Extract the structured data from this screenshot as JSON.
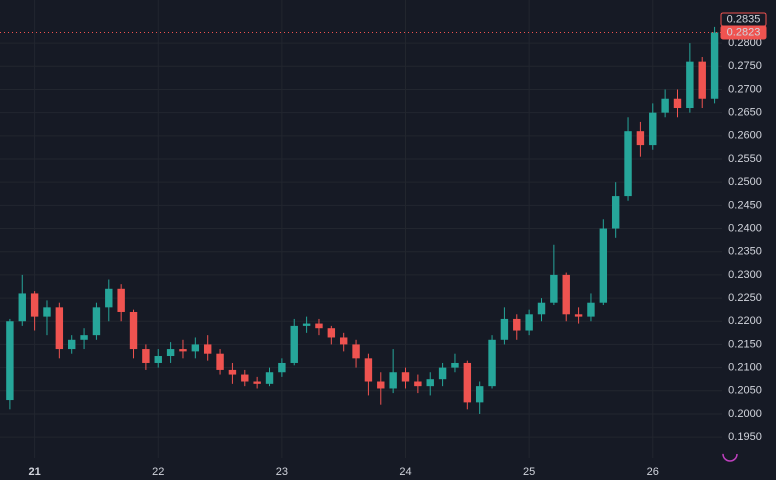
{
  "chart_data": {
    "type": "candlestick",
    "x": [
      20.8,
      20.9,
      21.0,
      21.1,
      21.2,
      21.3,
      21.4,
      21.5,
      21.6,
      21.7,
      21.8,
      21.9,
      22.0,
      22.1,
      22.2,
      22.3,
      22.4,
      22.5,
      22.6,
      22.7,
      22.8,
      22.9,
      23.0,
      23.1,
      23.2,
      23.3,
      23.4,
      23.5,
      23.6,
      23.7,
      23.8,
      23.9,
      24.0,
      24.1,
      24.2,
      24.3,
      24.4,
      24.5,
      24.6,
      24.7,
      24.8,
      24.9,
      25.0,
      25.1,
      25.2,
      25.3,
      25.4,
      25.5,
      25.6,
      25.7,
      25.8,
      25.9,
      26.0,
      26.1,
      26.2,
      26.3,
      26.4,
      26.5
    ],
    "open": [
      0.203,
      0.22,
      0.226,
      0.221,
      0.223,
      0.214,
      0.216,
      0.217,
      0.223,
      0.227,
      0.222,
      0.214,
      0.211,
      0.2125,
      0.214,
      0.2135,
      0.215,
      0.213,
      0.2095,
      0.2085,
      0.207,
      0.2065,
      0.209,
      0.211,
      0.219,
      0.2195,
      0.2185,
      0.2165,
      0.215,
      0.212,
      0.207,
      0.2055,
      0.209,
      0.207,
      0.206,
      0.2075,
      0.21,
      0.211,
      0.2025,
      0.206,
      0.216,
      0.2205,
      0.218,
      0.2215,
      0.224,
      0.23,
      0.2215,
      0.221,
      0.224,
      0.24,
      0.247,
      0.261,
      0.258,
      0.265,
      0.268,
      0.266,
      0.276,
      0.268
    ],
    "high": [
      0.2205,
      0.23,
      0.2265,
      0.2245,
      0.224,
      0.217,
      0.2185,
      0.224,
      0.229,
      0.228,
      0.2225,
      0.215,
      0.214,
      0.2155,
      0.216,
      0.2165,
      0.217,
      0.214,
      0.211,
      0.2095,
      0.208,
      0.21,
      0.212,
      0.2205,
      0.221,
      0.2205,
      0.219,
      0.2175,
      0.216,
      0.213,
      0.209,
      0.214,
      0.21,
      0.2085,
      0.209,
      0.211,
      0.213,
      0.2115,
      0.207,
      0.217,
      0.223,
      0.2215,
      0.2225,
      0.225,
      0.2365,
      0.2305,
      0.223,
      0.226,
      0.242,
      0.25,
      0.264,
      0.263,
      0.267,
      0.27,
      0.27,
      0.28,
      0.277,
      0.2835
    ],
    "low": [
      0.201,
      0.219,
      0.218,
      0.217,
      0.212,
      0.213,
      0.214,
      0.216,
      0.22,
      0.22,
      0.212,
      0.2095,
      0.21,
      0.211,
      0.212,
      0.212,
      0.2115,
      0.2085,
      0.2065,
      0.206,
      0.2055,
      0.206,
      0.208,
      0.2105,
      0.2175,
      0.217,
      0.215,
      0.2135,
      0.21,
      0.204,
      0.202,
      0.2045,
      0.2055,
      0.2045,
      0.204,
      0.206,
      0.209,
      0.201,
      0.2,
      0.2055,
      0.215,
      0.216,
      0.217,
      0.22,
      0.2235,
      0.22,
      0.2195,
      0.22,
      0.2235,
      0.238,
      0.246,
      0.2555,
      0.257,
      0.264,
      0.264,
      0.265,
      0.266,
      0.267
    ],
    "close": [
      0.22,
      0.226,
      0.221,
      0.223,
      0.214,
      0.216,
      0.217,
      0.223,
      0.227,
      0.222,
      0.214,
      0.211,
      0.2125,
      0.214,
      0.2135,
      0.215,
      0.213,
      0.2095,
      0.2085,
      0.207,
      0.2065,
      0.209,
      0.211,
      0.219,
      0.2195,
      0.2185,
      0.2165,
      0.215,
      0.212,
      0.207,
      0.2055,
      0.209,
      0.207,
      0.206,
      0.2075,
      0.21,
      0.211,
      0.2025,
      0.206,
      0.216,
      0.2205,
      0.218,
      0.2215,
      0.224,
      0.23,
      0.2215,
      0.221,
      0.224,
      0.24,
      0.247,
      0.261,
      0.258,
      0.265,
      0.268,
      0.266,
      0.276,
      0.268,
      0.2823
    ],
    "up_color": "#26a69a",
    "down_color": "#ef5350",
    "xlim": [
      20.72,
      26.56
    ],
    "xticks": [
      21,
      22,
      23,
      24,
      25,
      26
    ],
    "ylim": [
      0.1905,
      0.2893
    ],
    "yticks": [
      {
        "value": 0.195,
        "label": "0.1950"
      },
      {
        "value": 0.2,
        "label": "0.2000"
      },
      {
        "value": 0.205,
        "label": "0.2050"
      },
      {
        "value": 0.21,
        "label": "0.2100"
      },
      {
        "value": 0.215,
        "label": "0.2150"
      },
      {
        "value": 0.22,
        "label": "0.2200"
      },
      {
        "value": 0.225,
        "label": "0.2250"
      },
      {
        "value": 0.23,
        "label": "0.2300"
      },
      {
        "value": 0.235,
        "label": "0.2350"
      },
      {
        "value": 0.24,
        "label": "0.2400"
      },
      {
        "value": 0.245,
        "label": "0.2450"
      },
      {
        "value": 0.25,
        "label": "0.2500"
      },
      {
        "value": 0.255,
        "label": "0.2550"
      },
      {
        "value": 0.26,
        "label": "0.2600"
      },
      {
        "value": 0.265,
        "label": "0.2650"
      },
      {
        "value": 0.27,
        "label": "0.2700"
      },
      {
        "value": 0.275,
        "label": "0.2750"
      },
      {
        "value": 0.28,
        "label": "0.2800"
      }
    ],
    "grid": true,
    "price_markers": [
      {
        "value": 0.2835,
        "label": "0.2835"
      },
      {
        "value": 0.2823,
        "label": "0.2823"
      }
    ]
  }
}
